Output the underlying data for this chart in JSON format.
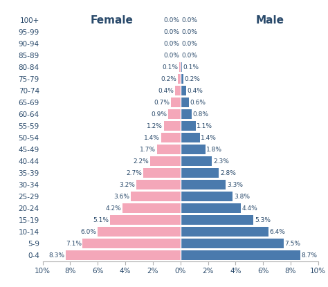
{
  "age_groups": [
    "0-4",
    "5-9",
    "10-14",
    "15-19",
    "20-24",
    "25-29",
    "30-34",
    "35-39",
    "40-44",
    "45-49",
    "50-54",
    "55-59",
    "60-64",
    "65-69",
    "70-74",
    "75-79",
    "80-84",
    "85-89",
    "90-94",
    "95-99",
    "100+"
  ],
  "female": [
    8.3,
    7.1,
    6.0,
    5.1,
    4.2,
    3.6,
    3.2,
    2.7,
    2.2,
    1.7,
    1.4,
    1.2,
    0.9,
    0.7,
    0.4,
    0.2,
    0.1,
    0.0,
    0.0,
    0.0,
    0.0
  ],
  "male": [
    8.7,
    7.5,
    6.4,
    5.3,
    4.4,
    3.8,
    3.3,
    2.8,
    2.3,
    1.8,
    1.4,
    1.1,
    0.8,
    0.6,
    0.4,
    0.2,
    0.1,
    0.0,
    0.0,
    0.0,
    0.0
  ],
  "female_color": "#f4a7b9",
  "male_color": "#4a7aad",
  "title_female": "Female",
  "title_male": "Male",
  "bar_height": 0.82,
  "xlim": 10,
  "xtick_labels": [
    "10%",
    "8%",
    "6%",
    "4%",
    "2%",
    "0%",
    "2%",
    "4%",
    "6%",
    "8%",
    "10%"
  ],
  "background_color": "#ffffff",
  "text_color": "#2a4a6b",
  "fontsize_labels": 6.5,
  "fontsize_ticks": 7.5,
  "fontsize_title": 11
}
